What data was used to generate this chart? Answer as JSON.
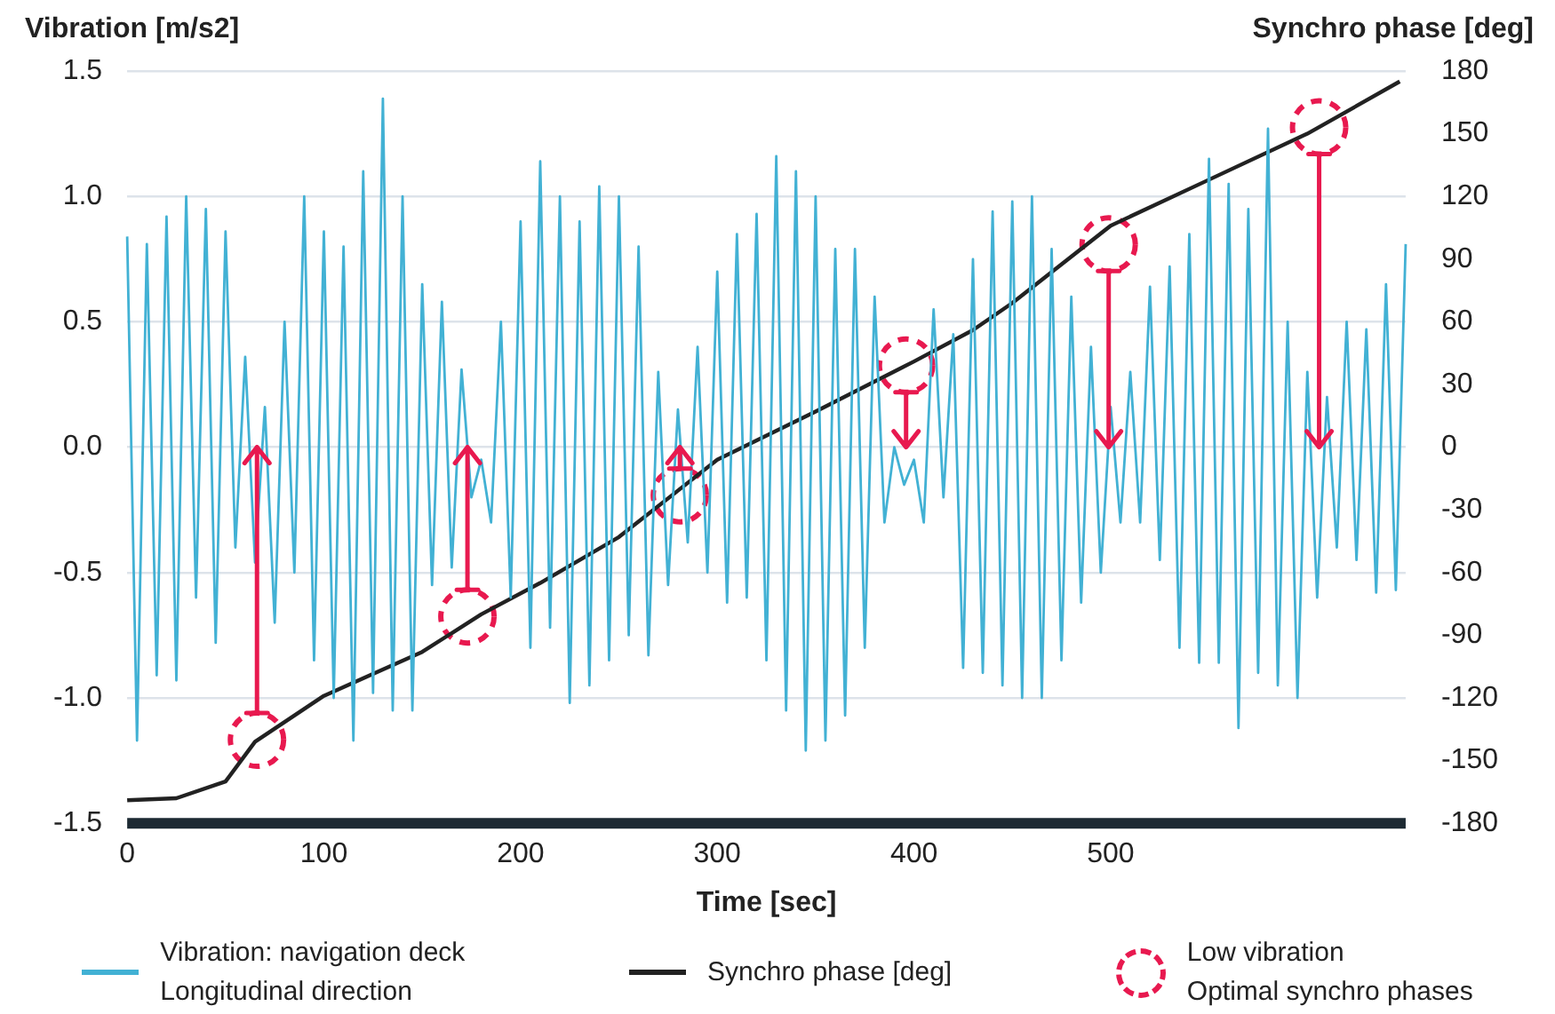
{
  "chart_data": {
    "type": "line",
    "xlabel": "Time [sec]",
    "ylabel": "Vibration [m/s2]",
    "y2label": "Synchro phase [deg]",
    "x": [
      0,
      5,
      10,
      15,
      20,
      25,
      30,
      35,
      40,
      45,
      50,
      55,
      60,
      65,
      70,
      75,
      80,
      85,
      90,
      95,
      100,
      105,
      110,
      115,
      120,
      125,
      130,
      135,
      140,
      145,
      150,
      155,
      160,
      165,
      170,
      175,
      180,
      185,
      190,
      195,
      200,
      205,
      210,
      215,
      220,
      225,
      230,
      235,
      240,
      245,
      250,
      255,
      260,
      265,
      270,
      275,
      280,
      285,
      290,
      295,
      300,
      305,
      310,
      315,
      320,
      325,
      330,
      335,
      340,
      345,
      350,
      355,
      360,
      365,
      370,
      375,
      380,
      385,
      390,
      395,
      400,
      405,
      410,
      415,
      420,
      425,
      430,
      435,
      440,
      445,
      450,
      455,
      460,
      465,
      470,
      475,
      480,
      485,
      490,
      495,
      500,
      505,
      510,
      515,
      520,
      525,
      530,
      535,
      540,
      545,
      550,
      555,
      560,
      565,
      570,
      575,
      580,
      585,
      590,
      595,
      600,
      605,
      610,
      615,
      620,
      625,
      630,
      635,
      640,
      645,
      650
    ],
    "xlim": [
      0,
      650
    ],
    "xticks": [
      0,
      100,
      200,
      300,
      400,
      500
    ],
    "ylim": [
      -1.5,
      1.5
    ],
    "yticks": [
      -1.5,
      {
        "value": -1,
        "label": "-1.0"
      },
      -0.5,
      {
        "value": 0,
        "label": "0.0"
      },
      0.5,
      {
        "value": 1,
        "label": "1.0"
      },
      1.5
    ],
    "y2lim": [
      -180,
      180
    ],
    "y2ticks": [
      -180,
      -150,
      -120,
      -90,
      -60,
      -30,
      0,
      30,
      60,
      90,
      120,
      150,
      180
    ],
    "grid": "y",
    "legend": "bottom",
    "series": [
      {
        "name": "Vibration: navigation deck\nLongitudinal direction",
        "color": "#42b1d4",
        "values": [
          0.84,
          -1.17,
          0.81,
          -0.91,
          0.92,
          -0.93,
          1.0,
          -0.6,
          0.95,
          -0.78,
          0.86,
          -0.4,
          0.36,
          -0.46,
          0.16,
          -0.7,
          0.5,
          -0.5,
          1.0,
          -0.85,
          0.86,
          -1.0,
          0.8,
          -1.17,
          1.1,
          -0.98,
          1.39,
          -1.05,
          1.0,
          -1.05,
          0.65,
          -0.55,
          0.58,
          -0.48,
          0.31,
          -0.2,
          -0.05,
          -0.3,
          0.5,
          -0.6,
          0.9,
          -0.8,
          1.14,
          -0.72,
          1.0,
          -1.02,
          0.9,
          -0.95,
          1.04,
          -0.85,
          1.0,
          -0.75,
          0.8,
          -0.83,
          0.3,
          -0.55,
          0.15,
          -0.38,
          0.4,
          -0.5,
          0.7,
          -0.62,
          0.85,
          -0.6,
          0.93,
          -0.85,
          1.16,
          -1.05,
          1.1,
          -1.21,
          1.0,
          -1.17,
          0.79,
          -1.07,
          0.79,
          -0.8,
          0.6,
          -0.3,
          0.0,
          -0.15,
          -0.05,
          -0.3,
          0.55,
          -0.2,
          0.45,
          -0.88,
          0.75,
          -0.9,
          0.94,
          -0.95,
          0.98,
          -1.0,
          1.0,
          -1.0,
          0.79,
          -0.85,
          0.6,
          -0.62,
          0.4,
          -0.5,
          0.16,
          -0.3,
          0.3,
          -0.3,
          0.64,
          -0.45,
          0.72,
          -0.8,
          0.85,
          -0.86,
          1.15,
          -0.86,
          1.05,
          -1.12,
          0.95,
          -0.9,
          1.27,
          -0.95,
          0.5,
          -1.0,
          0.3,
          -0.6,
          0.2,
          -0.4,
          0.5,
          -0.45,
          0.47,
          -0.58,
          0.65,
          -0.57,
          0.81
        ]
      },
      {
        "name": "Synchro phase [deg]",
        "color": "#222222",
        "axis": "y2",
        "x": [
          0,
          25,
          50,
          65,
          100,
          150,
          180,
          210,
          250,
          300,
          350,
          400,
          430,
          450,
          500,
          550,
          600,
          647
        ],
        "values": [
          -169,
          -168,
          -160,
          -141,
          -119,
          -98,
          -80,
          -65,
          -43,
          -6,
          17,
          41,
          56,
          69,
          106,
          128,
          150,
          175
        ]
      },
      {
        "type": "scatter",
        "name": "Low vibration\nOptimal synchro phases",
        "color": "#e8194f",
        "axis": "y2",
        "marker": "circle",
        "line_style": "dashed",
        "x": [
          66,
          173,
          281,
          396,
          499,
          606
        ],
        "values": [
          -140,
          -81,
          -23,
          39,
          97,
          153
        ]
      }
    ]
  }
}
